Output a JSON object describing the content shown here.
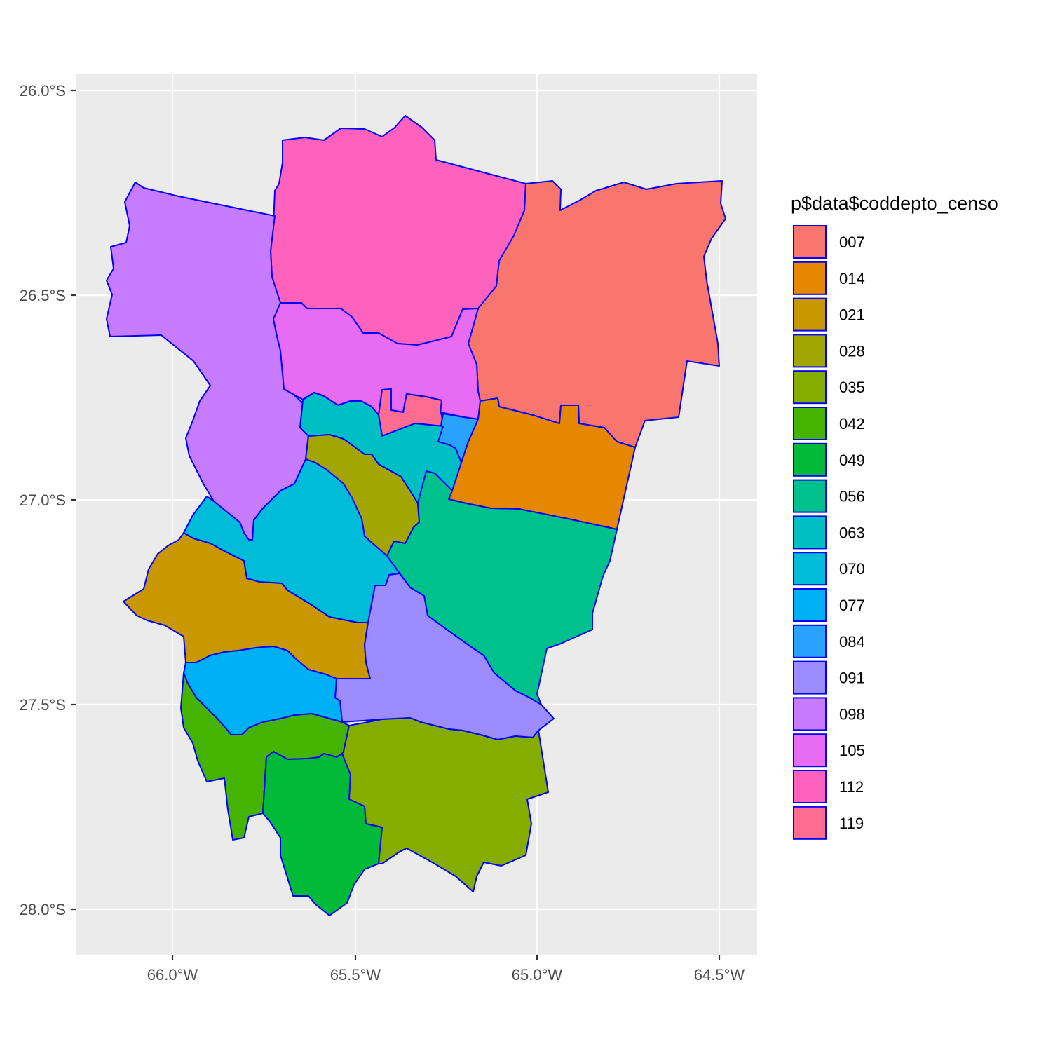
{
  "map": {
    "x_ticks": [
      "66.0°W",
      "65.5°W",
      "65.0°W",
      "64.5°W"
    ],
    "y_ticks": [
      "26.0°S",
      "26.5°S",
      "27.0°S",
      "27.5°S",
      "28.0°S"
    ],
    "x_tick_values": [
      -66.0,
      -65.5,
      -65.0,
      -64.5
    ],
    "y_tick_values": [
      -26.0,
      -26.5,
      -27.0,
      -27.5,
      -28.0
    ],
    "panel_background": "#ebebeb",
    "border_color": "#0000ff"
  },
  "legend": {
    "title": "p$data$coddepto_censo",
    "items": [
      {
        "code": "007",
        "color": "#F8766D"
      },
      {
        "code": "014",
        "color": "#E58700"
      },
      {
        "code": "021",
        "color": "#C99800"
      },
      {
        "code": "028",
        "color": "#A3A500"
      },
      {
        "code": "035",
        "color": "#85AD00"
      },
      {
        "code": "042",
        "color": "#44B400"
      },
      {
        "code": "049",
        "color": "#00BA38"
      },
      {
        "code": "056",
        "color": "#00C08B"
      },
      {
        "code": "063",
        "color": "#00BFC4"
      },
      {
        "code": "070",
        "color": "#00BCD8"
      },
      {
        "code": "077",
        "color": "#00B0F6"
      },
      {
        "code": "084",
        "color": "#29A3FF"
      },
      {
        "code": "091",
        "color": "#9C8CFF"
      },
      {
        "code": "098",
        "color": "#C77CFF"
      },
      {
        "code": "105",
        "color": "#E76BF3"
      },
      {
        "code": "112",
        "color": "#FF62BC"
      },
      {
        "code": "119",
        "color": "#FF6C91"
      }
    ]
  }
}
